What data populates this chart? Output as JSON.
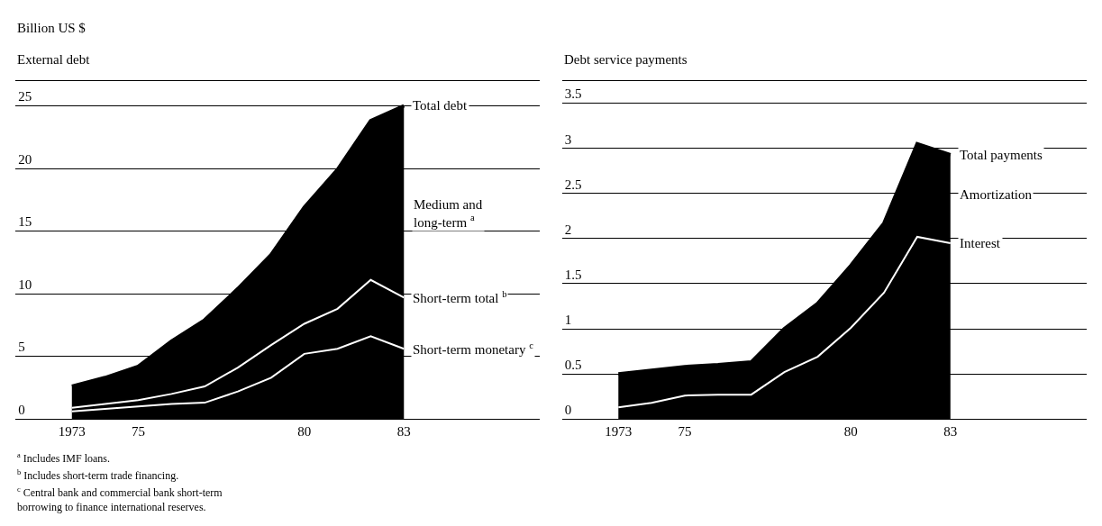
{
  "chart_data": [
    {
      "type": "line",
      "title": "External debt",
      "ylabel": "Billion US $",
      "x": [
        1973,
        1974,
        1975,
        1976,
        1977,
        1978,
        1979,
        1980,
        1981,
        1982,
        1983
      ],
      "series": [
        {
          "name": "Total debt",
          "type": "area",
          "color": "#000000",
          "values": [
            2.6,
            3.3,
            4.2,
            6.2,
            7.9,
            10.4,
            13.1,
            16.9,
            19.9,
            23.8,
            25.0
          ]
        },
        {
          "name": "Short-term total $^{b}$",
          "color": "#ffffff",
          "values": [
            0.9,
            1.2,
            1.5,
            2.0,
            2.6,
            4.1,
            5.9,
            7.6,
            8.8,
            11.1,
            9.7
          ]
        },
        {
          "name": "Short-term monetary $^{c}$",
          "color": "#ffffff",
          "values": [
            0.6,
            0.8,
            1.0,
            1.2,
            1.3,
            2.2,
            3.3,
            5.2,
            5.6,
            6.6,
            5.6
          ]
        }
      ],
      "xlim": [
        1971.3,
        1987.1
      ],
      "xticks": [
        {
          "value": 1973,
          "label": "1973"
        },
        {
          "value": 1975,
          "label": "75"
        },
        {
          "value": 1980,
          "label": "80"
        },
        {
          "value": 1983,
          "label": "83"
        }
      ],
      "ylim": [
        0,
        27
      ],
      "yticks": [
        0,
        5,
        10,
        15,
        20,
        25
      ],
      "grid": "y",
      "legend": false,
      "annotations": [
        "Medium and\nlong-term $^{a}$",
        "$^{a}$ Includes IMF loans.",
        "$^{b}$ Includes short-term trade financing.",
        "$^{c}$ Central bank and commercial bank short-term\nborrowing to finance international reserves."
      ]
    },
    {
      "type": "line",
      "title": "Debt service payments",
      "x": [
        1973,
        1974,
        1975,
        1976,
        1977,
        1978,
        1979,
        1980,
        1981,
        1982,
        1983
      ],
      "series": [
        {
          "name": "Total payments",
          "type": "area",
          "color": "#000000",
          "values": [
            0.5,
            0.54,
            0.58,
            0.6,
            0.63,
            1.0,
            1.28,
            1.7,
            2.17,
            3.05,
            2.93
          ]
        },
        {
          "name": "Interest",
          "color": "#ffffff",
          "values": [
            0.13,
            0.18,
            0.26,
            0.27,
            0.27,
            0.52,
            0.69,
            1.01,
            1.4,
            2.02,
            1.95
          ]
        }
      ],
      "xlim": [
        1971.3,
        1987.1
      ],
      "xticks": [
        {
          "value": 1973,
          "label": "1973"
        },
        {
          "value": 1975,
          "label": "75"
        },
        {
          "value": 1980,
          "label": "80"
        },
        {
          "value": 1983,
          "label": "83"
        }
      ],
      "ylim": [
        0,
        3.75
      ],
      "yticks": [
        0,
        0.5,
        1.0,
        1.5,
        2.0,
        2.5,
        3.0,
        3.5
      ],
      "grid": "y",
      "legend": false,
      "annotations": [
        "Amortization"
      ]
    }
  ]
}
